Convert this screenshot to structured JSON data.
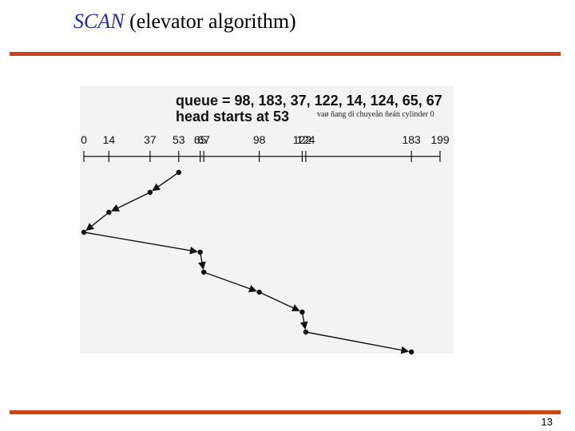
{
  "slide": {
    "title_em": "SCAN",
    "title_rest": " (elevator algorithm)",
    "page_number": "13"
  },
  "figure": {
    "queue_text": "queue = 98, 183, 37, 122, 14, 124, 65, 67",
    "head_text": "head starts at 53",
    "note": "vaø ñang di chuyeån ñeán cylinder 0"
  },
  "chart_data": {
    "type": "line",
    "x_ticks": [
      0,
      14,
      37,
      53,
      65,
      67,
      98,
      122,
      124,
      183,
      199
    ],
    "xlim": [
      0,
      199
    ],
    "queue": [
      98,
      183,
      37,
      122,
      14,
      124,
      65,
      67
    ],
    "head_start": 53,
    "service_order": [
      53,
      37,
      14,
      0,
      65,
      67,
      98,
      122,
      124,
      183
    ]
  },
  "colors": {
    "accent_rule": "#c8441b",
    "title_em": "#1f2bb0",
    "path": "#111111"
  }
}
